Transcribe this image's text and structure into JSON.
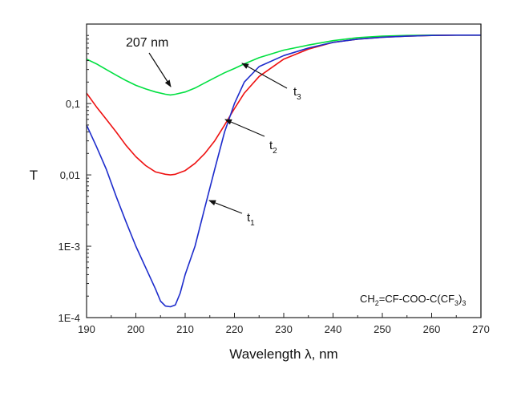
{
  "chart_data": {
    "type": "line",
    "xlabel": "Wavelength λ, nm",
    "ylabel": "T",
    "xlim": [
      190,
      270
    ],
    "ylim": [
      0.0001,
      1.3
    ],
    "yscale": "log",
    "grid": false,
    "x_ticks": [
      190,
      200,
      210,
      220,
      230,
      240,
      250,
      260,
      270
    ],
    "x_tick_labels": [
      "190",
      "200",
      "210",
      "220",
      "230",
      "240",
      "250",
      "260",
      "270"
    ],
    "y_ticks": [
      0.0001,
      0.001,
      0.01,
      0.1
    ],
    "y_tick_labels": [
      "1E-4",
      "1E-3",
      "0,01",
      "0,1"
    ],
    "series": [
      {
        "name": "t3",
        "color": "#00e040",
        "x": [
          190,
          192,
          194,
          196,
          198,
          200,
          202,
          204,
          206,
          207,
          208,
          210,
          212,
          214,
          216,
          218,
          220,
          222,
          225,
          230,
          235,
          240,
          245,
          250,
          255,
          260,
          265,
          270
        ],
        "y": [
          0.42,
          0.36,
          0.3,
          0.25,
          0.21,
          0.18,
          0.16,
          0.145,
          0.135,
          0.132,
          0.135,
          0.145,
          0.165,
          0.195,
          0.23,
          0.27,
          0.31,
          0.36,
          0.44,
          0.56,
          0.66,
          0.76,
          0.84,
          0.88,
          0.9,
          0.91,
          0.91,
          0.91
        ]
      },
      {
        "name": "t2",
        "color": "#ee1111",
        "x": [
          190,
          192,
          194,
          196,
          198,
          200,
          202,
          204,
          206,
          207,
          208,
          210,
          212,
          214,
          216,
          218,
          220,
          222,
          225,
          230,
          235,
          240,
          245,
          250,
          255,
          260,
          265,
          270
        ],
        "y": [
          0.14,
          0.09,
          0.06,
          0.04,
          0.026,
          0.018,
          0.0135,
          0.011,
          0.0102,
          0.01,
          0.0102,
          0.0115,
          0.0145,
          0.02,
          0.03,
          0.05,
          0.085,
          0.14,
          0.24,
          0.42,
          0.58,
          0.72,
          0.8,
          0.85,
          0.88,
          0.9,
          0.91,
          0.91
        ]
      },
      {
        "name": "t1",
        "color": "#1d2ccc",
        "x": [
          190,
          192,
          194,
          196,
          198,
          200,
          202,
          204,
          205,
          206,
          207,
          208,
          209,
          210,
          212,
          214,
          216,
          218,
          220,
          222,
          225,
          230,
          235,
          240,
          245,
          250,
          255,
          260,
          265,
          270
        ],
        "y": [
          0.05,
          0.025,
          0.012,
          0.005,
          0.0022,
          0.001,
          0.0005,
          0.00025,
          0.00017,
          0.000145,
          0.000142,
          0.00015,
          0.00022,
          0.0004,
          0.001,
          0.0035,
          0.012,
          0.04,
          0.1,
          0.2,
          0.33,
          0.47,
          0.6,
          0.72,
          0.8,
          0.85,
          0.88,
          0.9,
          0.91,
          0.91
        ]
      }
    ],
    "annotations": {
      "peak_label": "207 nm",
      "t3": {
        "letter": "t",
        "sub": "3"
      },
      "t2": {
        "letter": "t",
        "sub": "2"
      },
      "t1": {
        "letter": "t",
        "sub": "1"
      },
      "formula": [
        "CH",
        "2",
        "=CF-COO-C(CF",
        "3",
        ")",
        "3"
      ]
    }
  }
}
